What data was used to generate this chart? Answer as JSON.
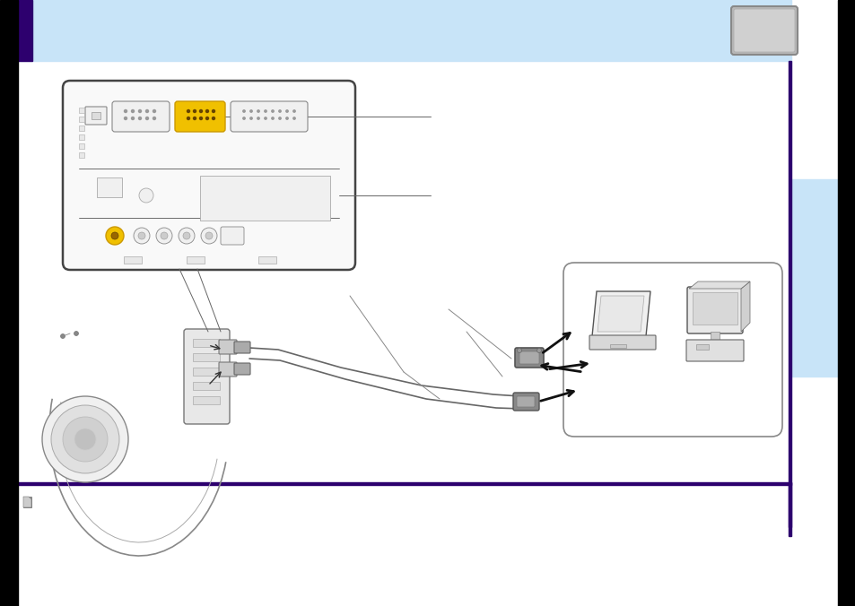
{
  "bg_color": "#ffffff",
  "header_blue": "#c8e4f8",
  "purple": "#2d006e",
  "black": "#000000",
  "gray_box": "#b8b8b8",
  "sidebar_blue": "#c8e4f8",
  "line_color": "#555555",
  "thin_line": "#888888",
  "yellow": "#f0c000",
  "diagram_line": "#555555",
  "panel_fill": "#f8f8f8",
  "white": "#ffffff"
}
